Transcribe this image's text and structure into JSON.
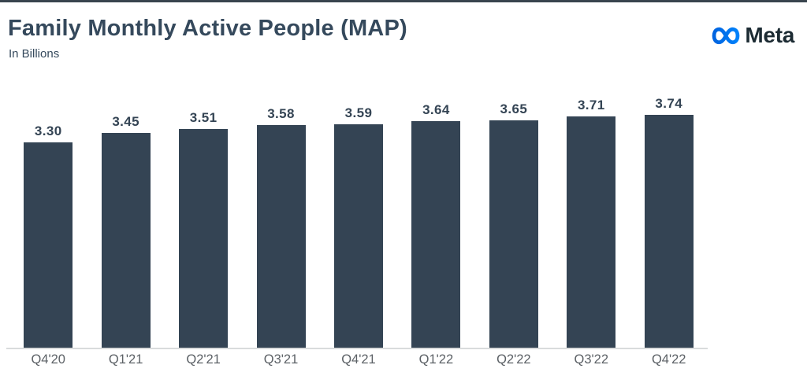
{
  "header": {
    "title": "Family Monthly Active People (MAP)",
    "subtitle": "In Billions"
  },
  "brand": {
    "name": "Meta",
    "logo_gradient_start": "#0064E0",
    "logo_gradient_end": "#0082FB",
    "wordmark_color": "#1c2b33"
  },
  "chart_data": {
    "type": "bar",
    "title": "Family Monthly Active People (MAP)",
    "subtitle": "In Billions",
    "xlabel": "",
    "ylabel": "In Billions",
    "categories": [
      "Q4'20",
      "Q1'21",
      "Q2'21",
      "Q3'21",
      "Q4'21",
      "Q1'22",
      "Q2'22",
      "Q3'22",
      "Q4'22"
    ],
    "values": [
      3.3,
      3.45,
      3.51,
      3.58,
      3.59,
      3.64,
      3.65,
      3.71,
      3.74
    ],
    "value_labels": [
      "3.30",
      "3.45",
      "3.51",
      "3.58",
      "3.59",
      "3.64",
      "3.65",
      "3.71",
      "3.74"
    ],
    "ylim": [
      0,
      3.9
    ],
    "grid": false,
    "legend": false,
    "bar_color": "#344454",
    "value_label_color": "#344454",
    "category_label_color": "#5c6166",
    "axis_line_color": "#d9dbdc"
  }
}
